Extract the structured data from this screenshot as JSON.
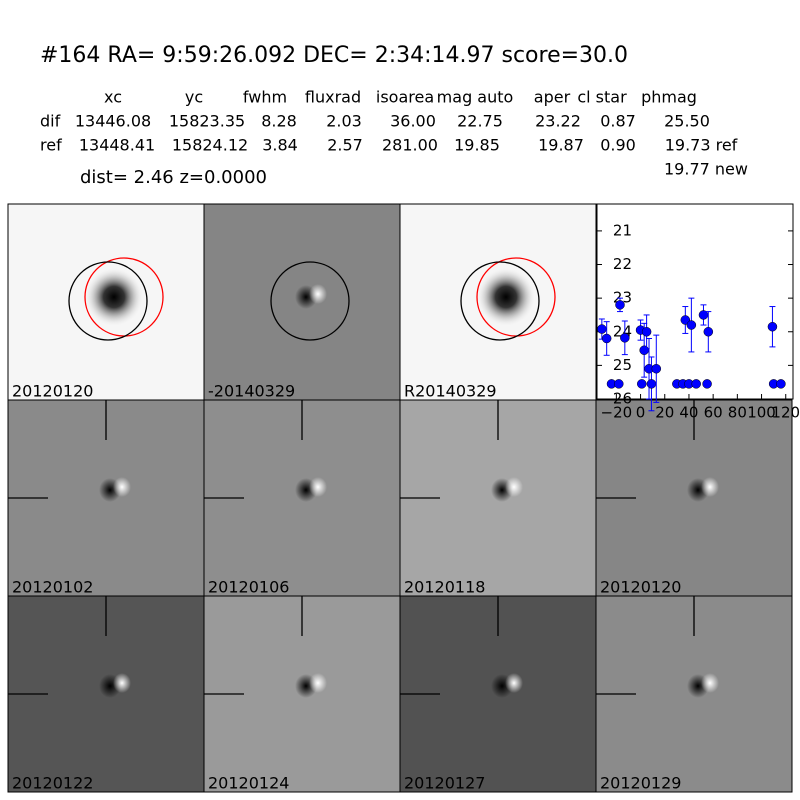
{
  "header": {
    "title": "#164   RA= 9:59:26.092 DEC= 2:34:14.97       score=30.0",
    "columns": [
      "xc",
      "yc",
      "fwhm",
      "fluxrad",
      "isoarea",
      "mag auto",
      "aper",
      "cl star",
      "phmag"
    ],
    "rows": [
      {
        "label": "dif",
        "cells": [
          "13446.08",
          "15823.35",
          "8.28",
          "2.03",
          "36.00",
          "22.75",
          "23.22",
          "0.87",
          "25.50"
        ]
      },
      {
        "label": "ref",
        "cells": [
          "13448.41",
          "15824.12",
          "3.84",
          "2.57",
          "281.00",
          "19.85",
          "19.87",
          "0.90",
          "19.73 ref"
        ]
      }
    ],
    "new_mag": "19.77 new",
    "dist": "dist=  2.46      z=0.0000"
  },
  "stamps": [
    "20120120",
    "-20140329",
    "R20140329",
    "20120102",
    "20120106",
    "20120118",
    "20120120",
    "20120122",
    "20120124",
    "20120127",
    "20120129"
  ],
  "chart_data": {
    "type": "scatter",
    "color": "#0000ff",
    "x": [
      -32,
      -28,
      -24,
      -18,
      -17,
      -13,
      0,
      1,
      3,
      5,
      7,
      9,
      13,
      30,
      35,
      37,
      40,
      42,
      46,
      52,
      55,
      56,
      109,
      110,
      116
    ],
    "values": [
      23.92,
      24.2,
      25.55,
      25.55,
      23.2,
      24.18,
      23.95,
      25.55,
      24.55,
      24.0,
      25.1,
      25.55,
      25.1,
      25.55,
      25.55,
      23.65,
      25.55,
      23.8,
      25.55,
      23.5,
      25.55,
      24.0,
      23.85,
      25.55,
      25.55
    ],
    "errors": [
      0.3,
      0.5,
      null,
      null,
      0.2,
      0.5,
      0.3,
      null,
      0.8,
      0.5,
      0.9,
      0.8,
      1.0,
      null,
      null,
      0.4,
      null,
      0.8,
      null,
      0.3,
      null,
      0.6,
      0.6,
      null,
      null
    ],
    "xlim": [
      -36,
      126
    ],
    "ylim": [
      26,
      20.2
    ],
    "xticks": [
      {
        "value": -20,
        "label": "−20"
      },
      0,
      20,
      40,
      60,
      80,
      100,
      120
    ],
    "yticks": [
      21,
      22,
      23,
      24,
      25,
      26
    ]
  }
}
